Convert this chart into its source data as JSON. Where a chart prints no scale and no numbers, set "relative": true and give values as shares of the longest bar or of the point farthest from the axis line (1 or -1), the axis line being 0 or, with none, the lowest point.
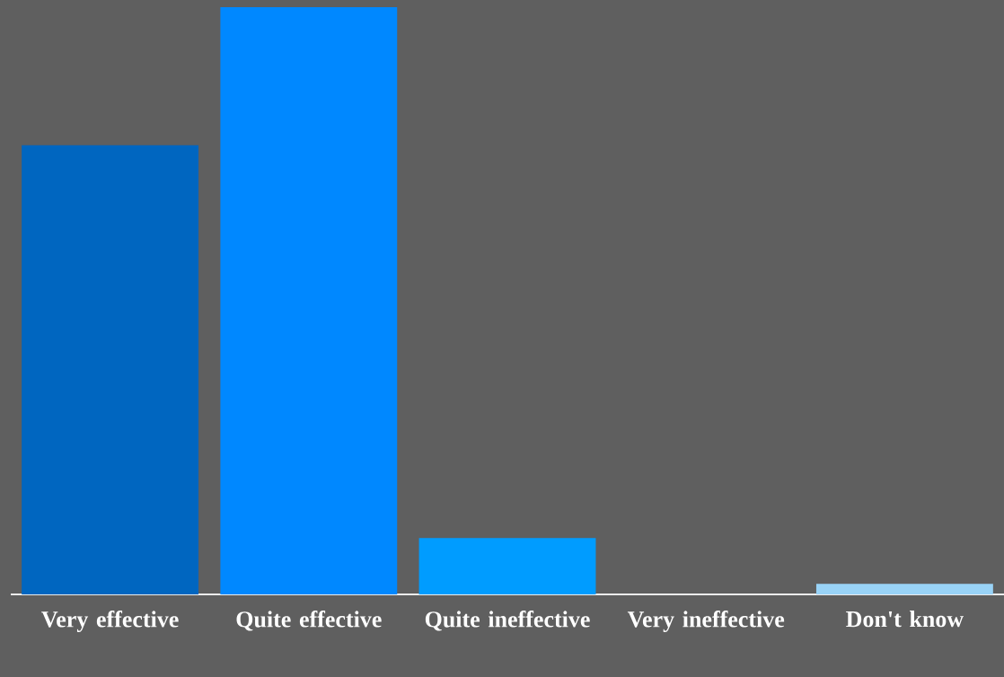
{
  "chart_data": {
    "type": "bar",
    "relative": true,
    "categories": [
      "Very effective",
      "Quite effective",
      "Quite ineffective",
      "Very ineffective",
      "Don't know"
    ],
    "values": [
      0.765,
      1,
      0.096,
      0,
      0.018
    ],
    "colors": [
      "#0066c0",
      "#0088ff",
      "#009cff",
      "#66c2ff",
      "#99d3f7"
    ]
  }
}
